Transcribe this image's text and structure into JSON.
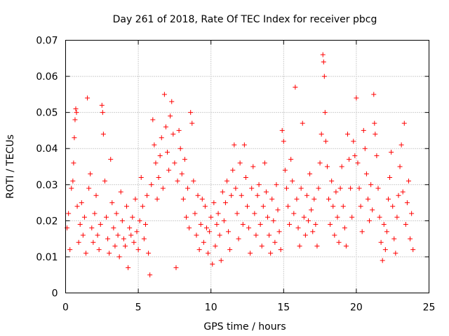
{
  "chart_data": {
    "type": "scatter",
    "title": "Day 261 of 2018, Rate Of TEC Index for receiver pbcg",
    "xlabel": "GPS time / hours",
    "ylabel": "ROTI / TECUs",
    "xlim": [
      0,
      25
    ],
    "ylim": [
      0,
      0.07
    ],
    "x_ticks": [
      "0",
      "5",
      "10",
      "15",
      "20",
      "25"
    ],
    "y_ticks": [
      "0",
      "0.01",
      "0.02",
      "0.03",
      "0.04",
      "0.05",
      "0.06",
      "0.07"
    ],
    "grid": true,
    "marker": "plus",
    "color": "#ff0000",
    "series": [
      {
        "name": "ROTI",
        "points": [
          [
            0.1,
            0.018
          ],
          [
            0.2,
            0.022
          ],
          [
            0.3,
            0.012
          ],
          [
            0.4,
            0.029
          ],
          [
            0.5,
            0.031
          ],
          [
            0.55,
            0.036
          ],
          [
            0.6,
            0.043
          ],
          [
            0.65,
            0.048
          ],
          [
            0.7,
            0.051
          ],
          [
            0.75,
            0.05
          ],
          [
            0.8,
            0.024
          ],
          [
            0.9,
            0.014
          ],
          [
            1.0,
            0.019
          ],
          [
            1.1,
            0.025
          ],
          [
            1.2,
            0.016
          ],
          [
            1.3,
            0.021
          ],
          [
            1.4,
            0.011
          ],
          [
            1.5,
            0.054
          ],
          [
            1.6,
            0.029
          ],
          [
            1.7,
            0.033
          ],
          [
            1.8,
            0.018
          ],
          [
            1.9,
            0.014
          ],
          [
            2.0,
            0.022
          ],
          [
            2.1,
            0.027
          ],
          [
            2.2,
            0.016
          ],
          [
            2.3,
            0.012
          ],
          [
            2.4,
            0.019
          ],
          [
            2.5,
            0.052
          ],
          [
            2.55,
            0.05
          ],
          [
            2.6,
            0.044
          ],
          [
            2.7,
            0.031
          ],
          [
            2.8,
            0.021
          ],
          [
            2.9,
            0.015
          ],
          [
            3.0,
            0.011
          ],
          [
            3.1,
            0.037
          ],
          [
            3.2,
            0.025
          ],
          [
            3.3,
            0.018
          ],
          [
            3.4,
            0.013
          ],
          [
            3.5,
            0.022
          ],
          [
            3.6,
            0.016
          ],
          [
            3.7,
            0.01
          ],
          [
            3.8,
            0.028
          ],
          [
            3.9,
            0.02
          ],
          [
            4.0,
            0.015
          ],
          [
            4.1,
            0.013
          ],
          [
            4.2,
            0.024
          ],
          [
            4.3,
            0.007
          ],
          [
            4.4,
            0.018
          ],
          [
            4.5,
            0.016
          ],
          [
            4.6,
            0.021
          ],
          [
            4.7,
            0.014
          ],
          [
            4.8,
            0.026
          ],
          [
            4.9,
            0.017
          ],
          [
            5.0,
            0.012
          ],
          [
            5.1,
            0.02
          ],
          [
            5.2,
            0.032
          ],
          [
            5.3,
            0.024
          ],
          [
            5.4,
            0.015
          ],
          [
            5.5,
            0.019
          ],
          [
            5.6,
            0.027
          ],
          [
            5.7,
            0.011
          ],
          [
            5.8,
            0.005
          ],
          [
            5.9,
            0.03
          ],
          [
            6.0,
            0.048
          ],
          [
            6.1,
            0.041
          ],
          [
            6.2,
            0.036
          ],
          [
            6.3,
            0.026
          ],
          [
            6.4,
            0.032
          ],
          [
            6.5,
            0.038
          ],
          [
            6.6,
            0.043
          ],
          [
            6.7,
            0.029
          ],
          [
            6.8,
            0.055
          ],
          [
            6.9,
            0.046
          ],
          [
            7.0,
            0.039
          ],
          [
            7.1,
            0.034
          ],
          [
            7.2,
            0.049
          ],
          [
            7.3,
            0.053
          ],
          [
            7.4,
            0.044
          ],
          [
            7.5,
            0.036
          ],
          [
            7.6,
            0.007
          ],
          [
            7.7,
            0.031
          ],
          [
            7.8,
            0.045
          ],
          [
            7.9,
            0.04
          ],
          [
            8.0,
            0.033
          ],
          [
            8.1,
            0.026
          ],
          [
            8.2,
            0.037
          ],
          [
            8.3,
            0.021
          ],
          [
            8.4,
            0.029
          ],
          [
            8.5,
            0.018
          ],
          [
            8.6,
            0.05
          ],
          [
            8.7,
            0.047
          ],
          [
            8.8,
            0.031
          ],
          [
            8.9,
            0.022
          ],
          [
            9.0,
            0.016
          ],
          [
            9.1,
            0.027
          ],
          [
            9.2,
            0.012
          ],
          [
            9.3,
            0.019
          ],
          [
            9.4,
            0.026
          ],
          [
            9.5,
            0.014
          ],
          [
            9.6,
            0.024
          ],
          [
            9.7,
            0.018
          ],
          [
            9.8,
            0.011
          ],
          [
            9.9,
            0.017
          ],
          [
            10.0,
            0.021
          ],
          [
            10.1,
            0.008
          ],
          [
            10.2,
            0.025
          ],
          [
            10.3,
            0.013
          ],
          [
            10.4,
            0.019
          ],
          [
            10.5,
            0.022
          ],
          [
            10.6,
            0.016
          ],
          [
            10.7,
            0.009
          ],
          [
            10.8,
            0.028
          ],
          [
            10.9,
            0.02
          ],
          [
            11.0,
            0.025
          ],
          [
            11.1,
            0.031
          ],
          [
            11.2,
            0.017
          ],
          [
            11.3,
            0.012
          ],
          [
            11.4,
            0.027
          ],
          [
            11.5,
            0.034
          ],
          [
            11.6,
            0.041
          ],
          [
            11.7,
            0.029
          ],
          [
            11.8,
            0.022
          ],
          [
            11.9,
            0.015
          ],
          [
            12.0,
            0.036
          ],
          [
            12.1,
            0.027
          ],
          [
            12.2,
            0.019
          ],
          [
            12.3,
            0.041
          ],
          [
            12.4,
            0.032
          ],
          [
            12.5,
            0.024
          ],
          [
            12.6,
            0.018
          ],
          [
            12.7,
            0.011
          ],
          [
            12.8,
            0.029
          ],
          [
            12.9,
            0.035
          ],
          [
            13.0,
            0.022
          ],
          [
            13.1,
            0.016
          ],
          [
            13.2,
            0.027
          ],
          [
            13.3,
            0.03
          ],
          [
            13.4,
            0.019
          ],
          [
            13.5,
            0.013
          ],
          [
            13.6,
            0.024
          ],
          [
            13.7,
            0.036
          ],
          [
            13.8,
            0.028
          ],
          [
            13.9,
            0.021
          ],
          [
            14.0,
            0.016
          ],
          [
            14.1,
            0.011
          ],
          [
            14.2,
            0.026
          ],
          [
            14.3,
            0.02
          ],
          [
            14.4,
            0.014
          ],
          [
            14.5,
            0.03
          ],
          [
            14.6,
            0.023
          ],
          [
            14.7,
            0.017
          ],
          [
            14.8,
            0.012
          ],
          [
            14.9,
            0.045
          ],
          [
            15.0,
            0.042
          ],
          [
            15.1,
            0.034
          ],
          [
            15.2,
            0.029
          ],
          [
            15.3,
            0.024
          ],
          [
            15.4,
            0.019
          ],
          [
            15.5,
            0.037
          ],
          [
            15.6,
            0.031
          ],
          [
            15.7,
            0.022
          ],
          [
            15.8,
            0.057
          ],
          [
            15.9,
            0.026
          ],
          [
            16.0,
            0.018
          ],
          [
            16.1,
            0.013
          ],
          [
            16.2,
            0.029
          ],
          [
            16.3,
            0.047
          ],
          [
            16.4,
            0.021
          ],
          [
            16.5,
            0.016
          ],
          [
            16.6,
            0.027
          ],
          [
            16.7,
            0.02
          ],
          [
            16.8,
            0.033
          ],
          [
            16.9,
            0.023
          ],
          [
            17.0,
            0.017
          ],
          [
            17.1,
            0.026
          ],
          [
            17.2,
            0.019
          ],
          [
            17.3,
            0.013
          ],
          [
            17.4,
            0.029
          ],
          [
            17.5,
            0.036
          ],
          [
            17.6,
            0.044
          ],
          [
            17.7,
            0.066
          ],
          [
            17.75,
            0.064
          ],
          [
            17.8,
            0.06
          ],
          [
            17.85,
            0.05
          ],
          [
            17.9,
            0.042
          ],
          [
            18.0,
            0.035
          ],
          [
            18.1,
            0.026
          ],
          [
            18.2,
            0.019
          ],
          [
            18.3,
            0.031
          ],
          [
            18.4,
            0.024
          ],
          [
            18.5,
            0.016
          ],
          [
            18.6,
            0.028
          ],
          [
            18.7,
            0.021
          ],
          [
            18.8,
            0.014
          ],
          [
            18.9,
            0.029
          ],
          [
            19.0,
            0.035
          ],
          [
            19.1,
            0.024
          ],
          [
            19.2,
            0.018
          ],
          [
            19.3,
            0.013
          ],
          [
            19.4,
            0.044
          ],
          [
            19.5,
            0.037
          ],
          [
            19.6,
            0.029
          ],
          [
            19.7,
            0.021
          ],
          [
            19.8,
            0.042
          ],
          [
            19.9,
            0.038
          ],
          [
            20.0,
            0.054
          ],
          [
            20.1,
            0.036
          ],
          [
            20.2,
            0.029
          ],
          [
            20.3,
            0.024
          ],
          [
            20.4,
            0.017
          ],
          [
            20.5,
            0.045
          ],
          [
            20.6,
            0.04
          ],
          [
            20.7,
            0.033
          ],
          [
            20.8,
            0.026
          ],
          [
            20.9,
            0.02
          ],
          [
            21.0,
            0.03
          ],
          [
            21.1,
            0.023
          ],
          [
            21.2,
            0.055
          ],
          [
            21.25,
            0.047
          ],
          [
            21.3,
            0.044
          ],
          [
            21.4,
            0.038
          ],
          [
            21.5,
            0.029
          ],
          [
            21.6,
            0.021
          ],
          [
            21.7,
            0.014
          ],
          [
            21.8,
            0.009
          ],
          [
            21.9,
            0.019
          ],
          [
            22.0,
            0.012
          ],
          [
            22.1,
            0.017
          ],
          [
            22.2,
            0.026
          ],
          [
            22.3,
            0.032
          ],
          [
            22.4,
            0.039
          ],
          [
            22.5,
            0.024
          ],
          [
            22.6,
            0.015
          ],
          [
            22.7,
            0.011
          ],
          [
            22.8,
            0.021
          ],
          [
            22.9,
            0.027
          ],
          [
            23.0,
            0.035
          ],
          [
            23.1,
            0.041
          ],
          [
            23.2,
            0.028
          ],
          [
            23.3,
            0.047
          ],
          [
            23.4,
            0.019
          ],
          [
            23.5,
            0.025
          ],
          [
            23.6,
            0.031
          ],
          [
            23.7,
            0.015
          ],
          [
            23.8,
            0.022
          ],
          [
            23.9,
            0.012
          ]
        ]
      }
    ]
  }
}
